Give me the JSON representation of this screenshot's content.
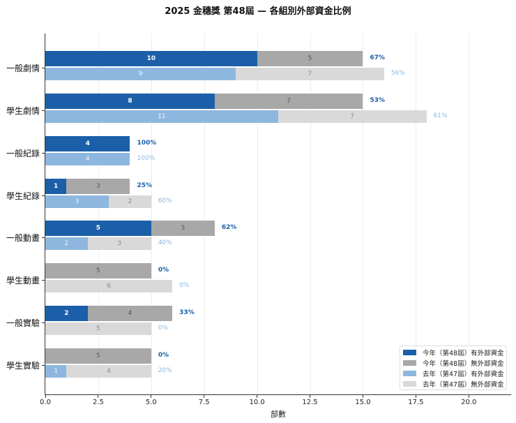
{
  "title": "2025 金穗獎 第48屆 — 各組別外部資金比例",
  "colors": {
    "this_year_with": "#1b5fa8",
    "this_year_without": "#a8a8a8",
    "last_year_with": "#8db7de",
    "last_year_without": "#d9d9d9"
  },
  "legend": [
    {
      "label": "今年（第48屆）有外部資金",
      "color": "#1b5fa8"
    },
    {
      "label": "今年（第48屆）無外部資金",
      "color": "#a8a8a8"
    },
    {
      "label": "去年（第47屆）有外部資金",
      "color": "#8db7de"
    },
    {
      "label": "去年（第47屆）無外部資金",
      "color": "#d9d9d9"
    }
  ],
  "chart_data": {
    "type": "bar",
    "orientation": "horizontal",
    "stacked": true,
    "title": "2025 金穗獎 第48屆 — 各組別外部資金比例",
    "xlabel": "部數",
    "ylabel": "",
    "xlim": [
      0,
      22
    ],
    "xticks": [
      "0.0",
      "2.5",
      "5.0",
      "7.5",
      "10.0",
      "12.5",
      "15.0",
      "17.5",
      "20.0"
    ],
    "grid": "x",
    "legend_position": "lower right",
    "categories": [
      "一般劇情",
      "學生劇情",
      "一般紀錄",
      "學生紀錄",
      "一般動畫",
      "學生動畫",
      "一般實驗",
      "學生實驗"
    ],
    "series": [
      {
        "name": "今年（第48屆）有外部資金",
        "values": [
          10,
          8,
          4,
          1,
          5,
          0,
          2,
          0
        ]
      },
      {
        "name": "今年（第48屆）無外部資金",
        "values": [
          5,
          7,
          0,
          3,
          3,
          5,
          4,
          5
        ]
      },
      {
        "name": "去年（第47屆）有外部資金",
        "values": [
          9,
          11,
          4,
          3,
          2,
          0,
          0,
          1
        ]
      },
      {
        "name": "去年（第47屆）無外部資金",
        "values": [
          7,
          7,
          0,
          2,
          3,
          6,
          5,
          4
        ]
      }
    ],
    "annotations": {
      "this_year_pct": [
        "67%",
        "53%",
        "100%",
        "25%",
        "62%",
        "0%",
        "33%",
        "0%"
      ],
      "last_year_pct": [
        "56%",
        "61%",
        "100%",
        "60%",
        "40%",
        "0%",
        "0%",
        "20%"
      ]
    }
  }
}
